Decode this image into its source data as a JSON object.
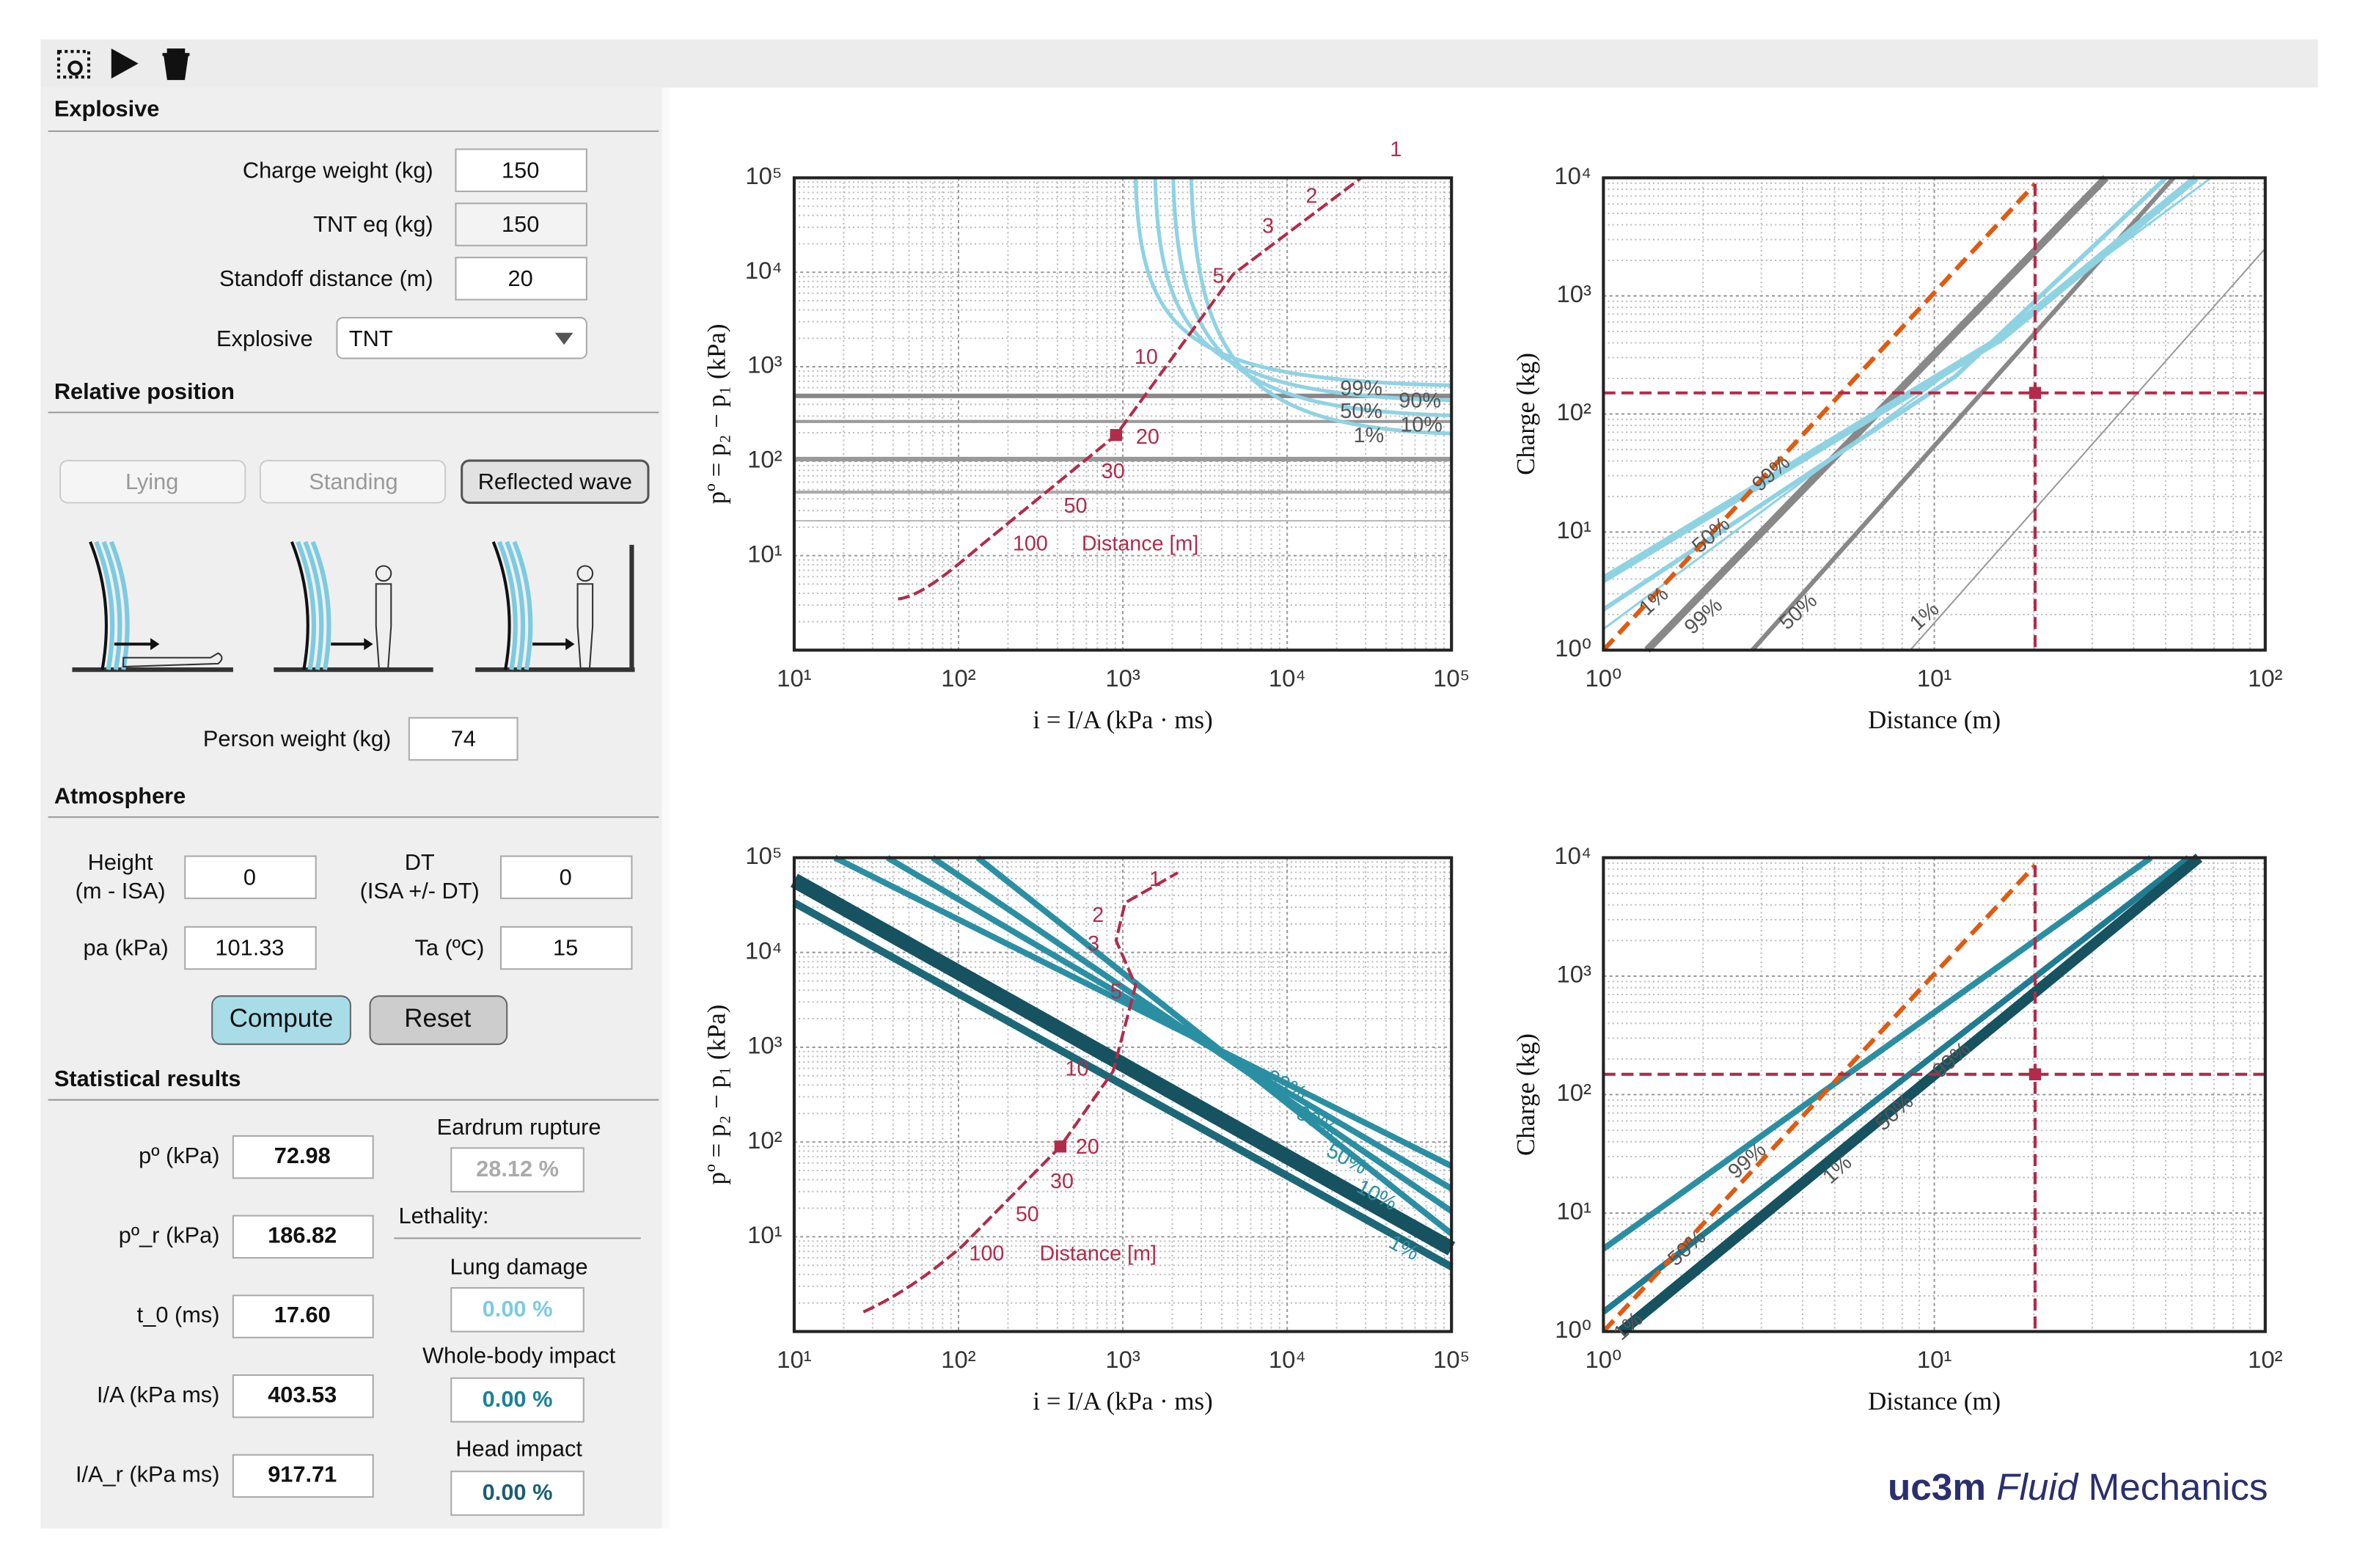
{
  "explosive": {
    "title": "Explosive",
    "charge_weight": {
      "label": "Charge weight (kg)",
      "value": 150
    },
    "tnt_eq": {
      "label": "TNT eq (kg)",
      "value": 150
    },
    "standoff": {
      "label": "Standoff distance (m)",
      "value": 20
    },
    "type": {
      "label": "Explosive",
      "value": "TNT"
    }
  },
  "relative_position": {
    "title": "Relative position",
    "buttons": [
      "Lying",
      "Standing",
      "Reflected wave"
    ],
    "person_weight": {
      "label": "Person weight (kg)",
      "value": 74
    }
  },
  "atmosphere": {
    "title": "Atmosphere",
    "height": {
      "label": [
        "Height",
        "(m - ISA)"
      ],
      "value": 0
    },
    "dt": {
      "label": [
        "DT",
        "(ISA +/- DT)"
      ],
      "value": 0
    },
    "pa": {
      "label": "pa (kPa)",
      "value": 101.33
    },
    "ta": {
      "label": "Ta (ºC)",
      "value": 15
    },
    "compute": "Compute",
    "reset": "Reset"
  },
  "statistical_results": {
    "title": "Statistical results",
    "fields": [
      {
        "label": "pº (kPa)",
        "value": "72.98"
      },
      {
        "label": "pº_r (kPa)",
        "value": "186.82"
      },
      {
        "label": "t_0 (ms)",
        "value": "17.60"
      },
      {
        "label": "I/A (kPa ms)",
        "value": "403.53"
      },
      {
        "label": "I/A_r (kPa ms)",
        "value": "917.71"
      }
    ],
    "eardrum": {
      "label": "Eardrum rupture",
      "value": "28.12  %"
    },
    "lethality": "Lethality:",
    "lung": {
      "label": "Lung damage",
      "value": "0.00  %"
    },
    "whole_body": {
      "label": "Whole-body impact",
      "value": "0.00  %"
    },
    "head": {
      "label": "Head impact",
      "value": "0.00  %"
    }
  },
  "plots": [
    {
      "xlabel": "i = I/A (kPa · ms)",
      "ylabel": "pº = p₂ − p₁ (kPa)",
      "xlim": [
        10,
        100000
      ],
      "ylim": [
        1,
        100000
      ],
      "xticks": [
        {
          "value": 10,
          "label": "10¹"
        },
        {
          "value": 100,
          "label": "10²"
        },
        {
          "value": 1000,
          "label": "10³"
        },
        {
          "value": 10000,
          "label": "10⁴"
        },
        {
          "value": 100000,
          "label": "10⁵"
        }
      ],
      "yticks": [
        {
          "value": 10,
          "label": "10¹"
        },
        {
          "value": 100,
          "label": "10²"
        },
        {
          "value": 1000,
          "label": "10³"
        },
        {
          "value": 10000,
          "label": "10⁴"
        },
        {
          "value": 100000,
          "label": "10⁵"
        }
      ],
      "annotations": [
        "1",
        "2",
        "3",
        "5",
        "10",
        "20",
        "30",
        "50",
        "100",
        "Distance [m]",
        "99%",
        "90%",
        "50%",
        "10%",
        "1%"
      ]
    },
    {
      "xlabel": "Distance (m)",
      "ylabel": "Charge (kg)",
      "xlim": [
        1,
        100
      ],
      "ylim": [
        1,
        10000
      ],
      "xticks": [
        {
          "value": 1,
          "label": "10⁰"
        },
        {
          "value": 10,
          "label": "10¹"
        },
        {
          "value": 100,
          "label": "10²"
        }
      ],
      "yticks": [
        {
          "value": 1,
          "label": "10⁰"
        },
        {
          "value": 10,
          "label": "10¹"
        },
        {
          "value": 100,
          "label": "10²"
        },
        {
          "value": 1000,
          "label": "10³"
        },
        {
          "value": 10000,
          "label": "10⁴"
        }
      ],
      "annotations": [
        "99%",
        "50%",
        "1%",
        "99%",
        "50%",
        "1%"
      ]
    },
    {
      "xlabel": "i = I/A (kPa · ms)",
      "ylabel": "pº = p₂ − p₁ (kPa)",
      "xlim": [
        10,
        100000
      ],
      "ylim": [
        1,
        100000
      ],
      "xticks": [
        {
          "value": 10,
          "label": "10¹"
        },
        {
          "value": 100,
          "label": "10²"
        },
        {
          "value": 1000,
          "label": "10³"
        },
        {
          "value": 10000,
          "label": "10⁴"
        },
        {
          "value": 100000,
          "label": "10⁵"
        }
      ],
      "yticks": [
        {
          "value": 10,
          "label": "10¹"
        },
        {
          "value": 100,
          "label": "10²"
        },
        {
          "value": 1000,
          "label": "10³"
        },
        {
          "value": 10000,
          "label": "10⁴"
        },
        {
          "value": 100000,
          "label": "10⁵"
        }
      ],
      "annotations": [
        "1",
        "2",
        "3",
        "5",
        "10",
        "20",
        "30",
        "50",
        "100",
        "Distance [m]",
        "99%",
        "90%",
        "50%",
        "10%",
        "1%"
      ]
    },
    {
      "xlabel": "Distance (m)",
      "ylabel": "Charge (kg)",
      "xlim": [
        1,
        100
      ],
      "ylim": [
        1,
        10000
      ],
      "xticks": [
        {
          "value": 1,
          "label": "10⁰"
        },
        {
          "value": 10,
          "label": "10¹"
        },
        {
          "value": 100,
          "label": "10²"
        }
      ],
      "yticks": [
        {
          "value": 1,
          "label": "10⁰"
        },
        {
          "value": 10,
          "label": "10¹"
        },
        {
          "value": 100,
          "label": "10²"
        },
        {
          "value": 1000,
          "label": "10³"
        },
        {
          "value": 10000,
          "label": "10⁴"
        }
      ],
      "annotations": [
        "99%",
        "50%",
        "1%",
        "99%",
        "50%",
        "1%"
      ]
    }
  ],
  "logo": {
    "brand": "uc3m",
    "italic": "Fluid",
    "rest": "Mechanics"
  }
}
